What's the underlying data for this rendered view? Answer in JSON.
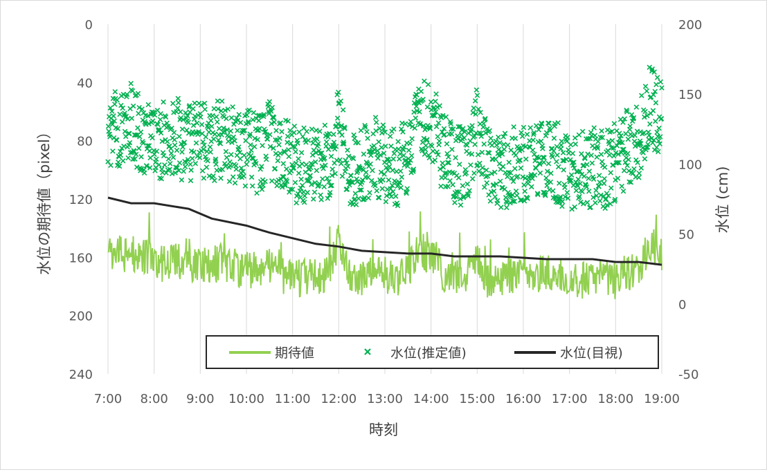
{
  "chart_data": {
    "type": "line+scatter",
    "xlabel": "時刻",
    "ylabel_left": "水位の期待値（pixel）",
    "ylabel_right": "水位 (cm)",
    "x_ticks": [
      "7:00",
      "8:00",
      "9:00",
      "10:00",
      "11:00",
      "12:00",
      "13:00",
      "14:00",
      "15:00",
      "16:00",
      "17:00",
      "18:00",
      "19:00"
    ],
    "x_range_hours": [
      7,
      19
    ],
    "left_axis": {
      "ticks": [
        "0",
        "40",
        "80",
        "120",
        "160",
        "200",
        "240"
      ],
      "range": [
        0,
        240
      ],
      "reversed": true
    },
    "right_axis": {
      "ticks": [
        "200",
        "150",
        "100",
        "50",
        "0",
        "-50"
      ],
      "range": [
        -50,
        200
      ]
    },
    "grid": "vertical",
    "legend_position": "bottom-right, inside plot",
    "series": [
      {
        "name": "期待値",
        "type": "line",
        "axis": "left",
        "color": "#92D050",
        "x": [
          7.0,
          7.25,
          7.5,
          7.75,
          8.0,
          8.25,
          8.5,
          8.75,
          9.0,
          9.25,
          9.5,
          9.75,
          10.0,
          10.25,
          10.5,
          10.75,
          11.0,
          11.25,
          11.5,
          11.75,
          12.0,
          12.25,
          12.5,
          12.75,
          13.0,
          13.25,
          13.5,
          13.75,
          14.0,
          14.25,
          14.5,
          14.75,
          15.0,
          15.25,
          15.5,
          15.75,
          16.0,
          16.25,
          16.5,
          16.75,
          17.0,
          17.25,
          17.5,
          17.75,
          18.0,
          18.25,
          18.5,
          18.75,
          19.0
        ],
        "values": [
          155,
          158,
          157,
          160,
          162,
          165,
          163,
          166,
          165,
          166,
          163,
          167,
          168,
          170,
          165,
          172,
          175,
          174,
          172,
          173,
          150,
          172,
          175,
          165,
          172,
          174,
          170,
          155,
          160,
          170,
          175,
          174,
          160,
          178,
          176,
          172,
          173,
          172,
          170,
          171,
          178,
          176,
          174,
          175,
          176,
          172,
          168,
          150,
          160
        ]
      },
      {
        "name": "水位(推定値)",
        "type": "scatter",
        "marker": "x",
        "axis": "left",
        "color": "#00B050",
        "x": [
          7.0,
          7.25,
          7.5,
          7.75,
          8.0,
          8.25,
          8.5,
          8.75,
          9.0,
          9.25,
          9.5,
          9.75,
          10.0,
          10.25,
          10.5,
          10.75,
          11.0,
          11.25,
          11.5,
          11.75,
          12.0,
          12.25,
          12.5,
          12.75,
          13.0,
          13.25,
          13.5,
          13.75,
          14.0,
          14.25,
          14.5,
          14.75,
          15.0,
          15.25,
          15.5,
          15.75,
          16.0,
          16.25,
          16.5,
          16.75,
          17.0,
          17.25,
          17.5,
          17.75,
          18.0,
          18.25,
          18.5,
          18.75,
          19.0
        ],
        "values": [
          70,
          72,
          68,
          75,
          78,
          80,
          78,
          82,
          80,
          82,
          78,
          84,
          85,
          90,
          80,
          92,
          95,
          96,
          95,
          97,
          70,
          96,
          98,
          90,
          95,
          98,
          92,
          60,
          65,
          88,
          95,
          98,
          70,
          100,
          102,
          96,
          97,
          96,
          94,
          95,
          104,
          100,
          98,
          100,
          95,
          85,
          80,
          55,
          65
        ]
      },
      {
        "name": "水位(目視)",
        "type": "line",
        "axis": "right",
        "color": "#262626",
        "x": [
          7.0,
          7.5,
          8.0,
          8.75,
          9.25,
          10.0,
          10.5,
          11.0,
          11.5,
          12.0,
          12.5,
          13.0,
          13.5,
          14.0,
          14.5,
          15.0,
          15.5,
          16.0,
          16.5,
          17.0,
          17.5,
          18.0,
          18.5,
          19.0
        ],
        "values": [
          76,
          72,
          72,
          68,
          61,
          56,
          51,
          47,
          43,
          41,
          38,
          37,
          36,
          36,
          34,
          34,
          34,
          33,
          32,
          32,
          32,
          30,
          30,
          28
        ]
      }
    ]
  }
}
